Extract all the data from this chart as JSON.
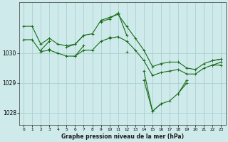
{
  "xlabel": "Graphe pression niveau de la mer (hPa)",
  "x_ticks": [
    0,
    1,
    2,
    3,
    4,
    5,
    6,
    7,
    8,
    9,
    10,
    11,
    12,
    13,
    14,
    15,
    16,
    17,
    18,
    19,
    20,
    21,
    22,
    23
  ],
  "ylim": [
    1027.6,
    1031.7
  ],
  "yticks": [
    1028,
    1029,
    1030
  ],
  "xlim": [
    -0.5,
    23.5
  ],
  "background_color": "#ceeaea",
  "grid_color": "#aad0d0",
  "line_color": "#1a6b1a",
  "series": [
    [
      1030.9,
      1030.9,
      1030.3,
      1030.5,
      1030.3,
      1030.25,
      1030.3,
      1030.6,
      1030.65,
      1031.1,
      1031.2,
      1031.3,
      1030.9,
      1030.5,
      1030.1,
      1029.55,
      1029.65,
      1029.7,
      1029.7,
      1029.5,
      1029.45,
      1029.65,
      1029.75,
      1029.8
    ],
    [
      1030.45,
      1030.45,
      1030.05,
      1030.1,
      1030.0,
      1029.9,
      1029.9,
      1030.1,
      1030.1,
      1030.4,
      1030.5,
      1030.55,
      1030.4,
      1030.1,
      1029.75,
      1029.25,
      1029.35,
      1029.4,
      1029.45,
      1029.3,
      1029.3,
      1029.5,
      1029.6,
      1029.6
    ],
    [
      null,
      null,
      1030.1,
      1030.4,
      null,
      1030.2,
      1030.3,
      1030.6,
      null,
      1031.05,
      1031.15,
      1031.35,
      1030.6,
      null,
      1029.4,
      1028.05,
      1028.3,
      1028.4,
      1028.65,
      1029.1,
      null,
      null,
      1029.75,
      1029.8
    ],
    [
      null,
      null,
      null,
      1030.15,
      null,
      null,
      1029.9,
      1030.25,
      null,
      null,
      1030.55,
      null,
      1030.05,
      null,
      1029.1,
      1028.05,
      1028.3,
      null,
      1028.65,
      1029.0,
      null,
      null,
      1029.6,
      1029.7
    ]
  ]
}
